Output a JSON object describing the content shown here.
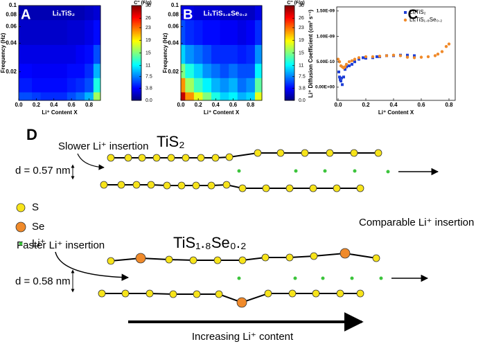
{
  "chart_data": [
    {
      "type": "contour",
      "panel": "A",
      "title": "LiₓTiS₂",
      "xlabel": "Li⁺ Content X",
      "ylabel": "Frequency (Hz)",
      "x": [
        0,
        0.1,
        0.2,
        0.3,
        0.4,
        0.5,
        0.6,
        0.7,
        0.8,
        0.9
      ],
      "y": [
        0.01,
        0.015,
        0.02,
        0.03,
        0.05,
        0.1
      ],
      "z": [
        [
          6,
          6,
          5.5,
          5,
          5,
          5,
          6,
          7,
          9,
          16
        ],
        [
          4.5,
          4.5,
          4,
          4,
          4,
          4,
          4.5,
          5,
          6,
          12
        ],
        [
          3.8,
          3.8,
          3.5,
          3.5,
          3.5,
          3.5,
          4,
          4,
          5,
          9
        ],
        [
          3,
          3,
          3,
          3,
          3,
          3,
          3,
          3.5,
          4,
          6
        ],
        [
          2.2,
          2.2,
          2.2,
          2.2,
          2.2,
          2.2,
          2.5,
          2.5,
          3,
          4
        ],
        [
          1.5,
          1.5,
          1.5,
          1.5,
          1.5,
          1.5,
          1.5,
          1.5,
          2,
          2.5
        ]
      ],
      "xlim": [
        0,
        0.93
      ],
      "ylim": [
        0.01,
        0.1
      ],
      "ylog": true,
      "xticks": [
        {
          "value": 0,
          "label": "0.0"
        },
        0.2,
        0.4,
        0.6,
        0.8
      ],
      "yticks": [
        0.02,
        0.04,
        0.06,
        0.08,
        0.1
      ],
      "colorbar": {
        "title": "C'' (F/g)",
        "lim": [
          0,
          30
        ],
        "ticks": [
          {
            "value": 0,
            "label": "0.0"
          },
          3.8,
          7.5,
          11,
          15,
          19,
          23,
          26,
          30
        ]
      }
    },
    {
      "type": "contour",
      "panel": "B",
      "title": "LiₓTiS₁.₈Se₀.₂",
      "xlabel": "Li⁺ Content X",
      "ylabel": "Frequency (Hz)",
      "x": [
        0,
        0.1,
        0.2,
        0.3,
        0.4,
        0.5,
        0.6,
        0.7,
        0.8,
        0.9
      ],
      "y": [
        0.01,
        0.015,
        0.02,
        0.03,
        0.05,
        0.1
      ],
      "z": [
        [
          28,
          22,
          18,
          15,
          12,
          10,
          11,
          9,
          10,
          18
        ],
        [
          22,
          16,
          13,
          11,
          9,
          8,
          9,
          7,
          8,
          14
        ],
        [
          15,
          12,
          10,
          8,
          7,
          6,
          7,
          6,
          6,
          11
        ],
        [
          10,
          8,
          7,
          6,
          5,
          5,
          5,
          4.5,
          5,
          8
        ],
        [
          6,
          5,
          4.5,
          4,
          4,
          3.5,
          3.5,
          3,
          3.5,
          5
        ],
        [
          3,
          3,
          2.5,
          2.5,
          2.5,
          2,
          2,
          2,
          2,
          3
        ]
      ],
      "xlim": [
        0,
        0.93
      ],
      "ylim": [
        0.01,
        0.1
      ],
      "ylog": true,
      "xticks": [
        {
          "value": 0,
          "label": "0.0"
        },
        0.2,
        0.4,
        0.6,
        0.8
      ],
      "yticks": [
        0.02,
        0.04,
        0.06,
        0.08,
        0.1
      ],
      "colorbar": {
        "title": "C'' (F/g)",
        "lim": [
          0,
          30
        ],
        "ticks": [
          {
            "value": 0,
            "label": "0.0"
          },
          3.8,
          7.5,
          11,
          15,
          19,
          23,
          26,
          30
        ]
      }
    },
    {
      "type": "scatter",
      "panel": "C",
      "xlabel": "Li⁺ Content X",
      "ylabel": "Li⁺ Diffusion Coefficient (cm² s⁻¹)",
      "xlim": [
        -0.01,
        0.845
      ],
      "ylim": [
        -2.6e-10,
        1.58e-09
      ],
      "xticks": [
        {
          "value": 0,
          "label": "0.0"
        },
        0.2,
        0.4,
        0.6,
        0.8
      ],
      "yticks": [
        {
          "value": 0,
          "label": "0.00E+00"
        },
        {
          "value": 5e-10,
          "label": "5.00E-10"
        },
        {
          "value": 1e-09,
          "label": "1.00E-09"
        },
        {
          "value": 1.5e-09,
          "label": "1.50E-09"
        }
      ],
      "legend": "upper right",
      "series": [
        {
          "name": "LiₓTiS₂",
          "color": "#1f3fd6",
          "marker": "square",
          "x": [
            0.005,
            0.01,
            0.015,
            0.02,
            0.025,
            0.03,
            0.04,
            0.05,
            0.06,
            0.08,
            0.1,
            0.12,
            0.15,
            0.18,
            0.2,
            0.25,
            0.28,
            0.3,
            0.35,
            0.4,
            0.45,
            0.5,
            0.55
          ],
          "values": [
            3e-10,
            2e-10,
            1.5e-10,
            1.2e-10,
            1.8e-10,
            5e-11,
            2e-10,
            3.5e-10,
            4e-10,
            4.2e-10,
            4.5e-10,
            5e-10,
            5.5e-10,
            5.8e-10,
            5.7e-10,
            5.8e-10,
            6e-10,
            6e-10,
            6.2e-10,
            6.2e-10,
            6.3e-10,
            6.3e-10,
            6.2e-10
          ]
        },
        {
          "name": "LiₓTiS₁.₈Se₀.₂",
          "color": "#f08a2a",
          "marker": "circle",
          "x": [
            0,
            0.01,
            0.02,
            0.03,
            0.04,
            0.05,
            0.06,
            0.08,
            0.1,
            0.12,
            0.15,
            0.2,
            0.25,
            0.3,
            0.35,
            0.4,
            0.45,
            0.5,
            0.55,
            0.6,
            0.65,
            0.7,
            0.72,
            0.75,
            0.78,
            0.8
          ],
          "values": [
            5.5e-10,
            5e-10,
            4.2e-10,
            4e-10,
            3.8e-10,
            4e-10,
            4.5e-10,
            5e-10,
            5.2e-10,
            5.5e-10,
            5.8e-10,
            6e-10,
            6e-10,
            6.1e-10,
            6.2e-10,
            6.3e-10,
            6.2e-10,
            5.9e-10,
            5.8e-10,
            5.9e-10,
            6e-10,
            6.2e-10,
            6.5e-10,
            7e-10,
            8e-10,
            8.5e-10
          ]
        }
      ]
    }
  ],
  "diagram": {
    "label": "D",
    "top": {
      "insertion": "Slower Li⁺ insertion",
      "formula": "TiS₂",
      "spacing": "d = 0.57 nm"
    },
    "legend": [
      "S",
      "Se",
      "Li⁺"
    ],
    "comparable": "Comparable Li⁺ insertion",
    "bottom": {
      "insertion": "Faster Li⁺ insertion",
      "formula": "TiS₁.₈Se₀.₂",
      "spacing": "d = 0.58 nm"
    },
    "footer": "Increasing Li⁺ content"
  }
}
